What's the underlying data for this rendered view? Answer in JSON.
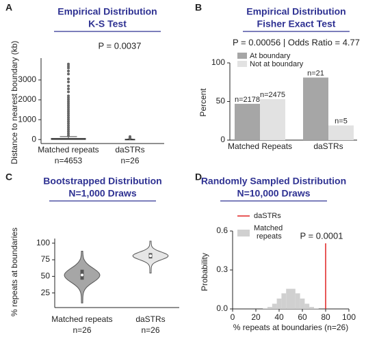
{
  "chart_data": [
    {
      "type": "box",
      "panel": "A",
      "title": "Empirical Distribution",
      "subtitle": "K-S Test",
      "annotation": "P =  0.0037",
      "ylabel": "Distance to nearest boundary (kb)",
      "categories": [
        "Matched repeats",
        "daSTRs"
      ],
      "count_labels": [
        "n=4653",
        "n=26"
      ],
      "ylim": [
        -200,
        4100
      ],
      "yticks": [
        0,
        1000,
        2000,
        3000
      ],
      "color": "#a6a6a6",
      "boxes": [
        {
          "min": 0,
          "q1": 5,
          "median": 20,
          "q3": 60,
          "max": 150,
          "outliers": [
            200,
            300,
            400,
            500,
            600,
            700,
            800,
            900,
            1000,
            1100,
            1200,
            1300,
            1400,
            1500,
            1600,
            1700,
            1800,
            1900,
            2000,
            2100,
            2200,
            2400,
            2550,
            2700,
            2900,
            3050,
            3300,
            3450,
            3600,
            3700,
            3800
          ]
        },
        {
          "min": 0,
          "q1": 2,
          "median": 6,
          "q3": 15,
          "max": 30,
          "outliers": [
            60,
            90,
            120,
            150
          ]
        }
      ]
    },
    {
      "type": "grouped_bar",
      "panel": "B",
      "title": "Empirical Distribution",
      "subtitle": "Fisher Exact Test",
      "annotation": "P =  0.00056 | Odds Ratio = 4.77",
      "ylabel": "Percent",
      "categories": [
        "Matched Repeats",
        "daSTRs"
      ],
      "ylim": [
        0,
        100
      ],
      "yticks": [
        0,
        50,
        100
      ],
      "series": [
        {
          "name": "At boundary",
          "color": "#a6a6a6",
          "values": [
            47,
            81
          ],
          "count_labels": [
            "n=2178",
            "n=21"
          ]
        },
        {
          "name": "Not at boundary",
          "color": "#e2e2e2",
          "values": [
            53,
            19
          ],
          "count_labels": [
            "n=2475",
            "n=5"
          ]
        }
      ]
    },
    {
      "type": "violin",
      "panel": "C",
      "title": "Bootstrapped Distribution",
      "subtitle": "N=1,000 Draws",
      "ylabel": "% repeats at boundaries",
      "categories": [
        "Matched repeats",
        "daSTRs"
      ],
      "count_labels": [
        "n=26",
        "n=26"
      ],
      "ylim": [
        3,
        107
      ],
      "yticks": [
        25,
        50,
        75,
        100
      ],
      "violins": [
        {
          "color": "#a6a6a6",
          "min": 10,
          "q1": 45,
          "median": 52,
          "q3": 60,
          "max": 88
        },
        {
          "color": "#e6e6e6",
          "min": 55,
          "q1": 77,
          "median": 81,
          "q3": 85,
          "max": 103
        }
      ]
    },
    {
      "type": "histogram",
      "panel": "D",
      "title": "Randomly Sampled Distribution",
      "subtitle": "N=10,000 Draws",
      "annotation": "P =  0.0001",
      "xlabel": "% repeats at boundaries (n=26)",
      "ylabel": "Probability",
      "xlim": [
        0,
        100
      ],
      "xticks": [
        0,
        20,
        40,
        60,
        80,
        100
      ],
      "ylim": [
        0,
        0.6
      ],
      "yticks": [
        {
          "value": 0,
          "label": "0.0"
        },
        0.3,
        0.6
      ],
      "bins": [
        26,
        30,
        34,
        38,
        42,
        46,
        50,
        54,
        58,
        62,
        66,
        70,
        74
      ],
      "values": [
        0.005,
        0.015,
        0.04,
        0.08,
        0.12,
        0.155,
        0.155,
        0.12,
        0.08,
        0.04,
        0.015,
        0.005
      ],
      "series_name": "Matched repeats",
      "color": "#d0d0d0",
      "threshold": {
        "name": "daSTRs",
        "value": 80,
        "color": "#e02020"
      }
    }
  ]
}
